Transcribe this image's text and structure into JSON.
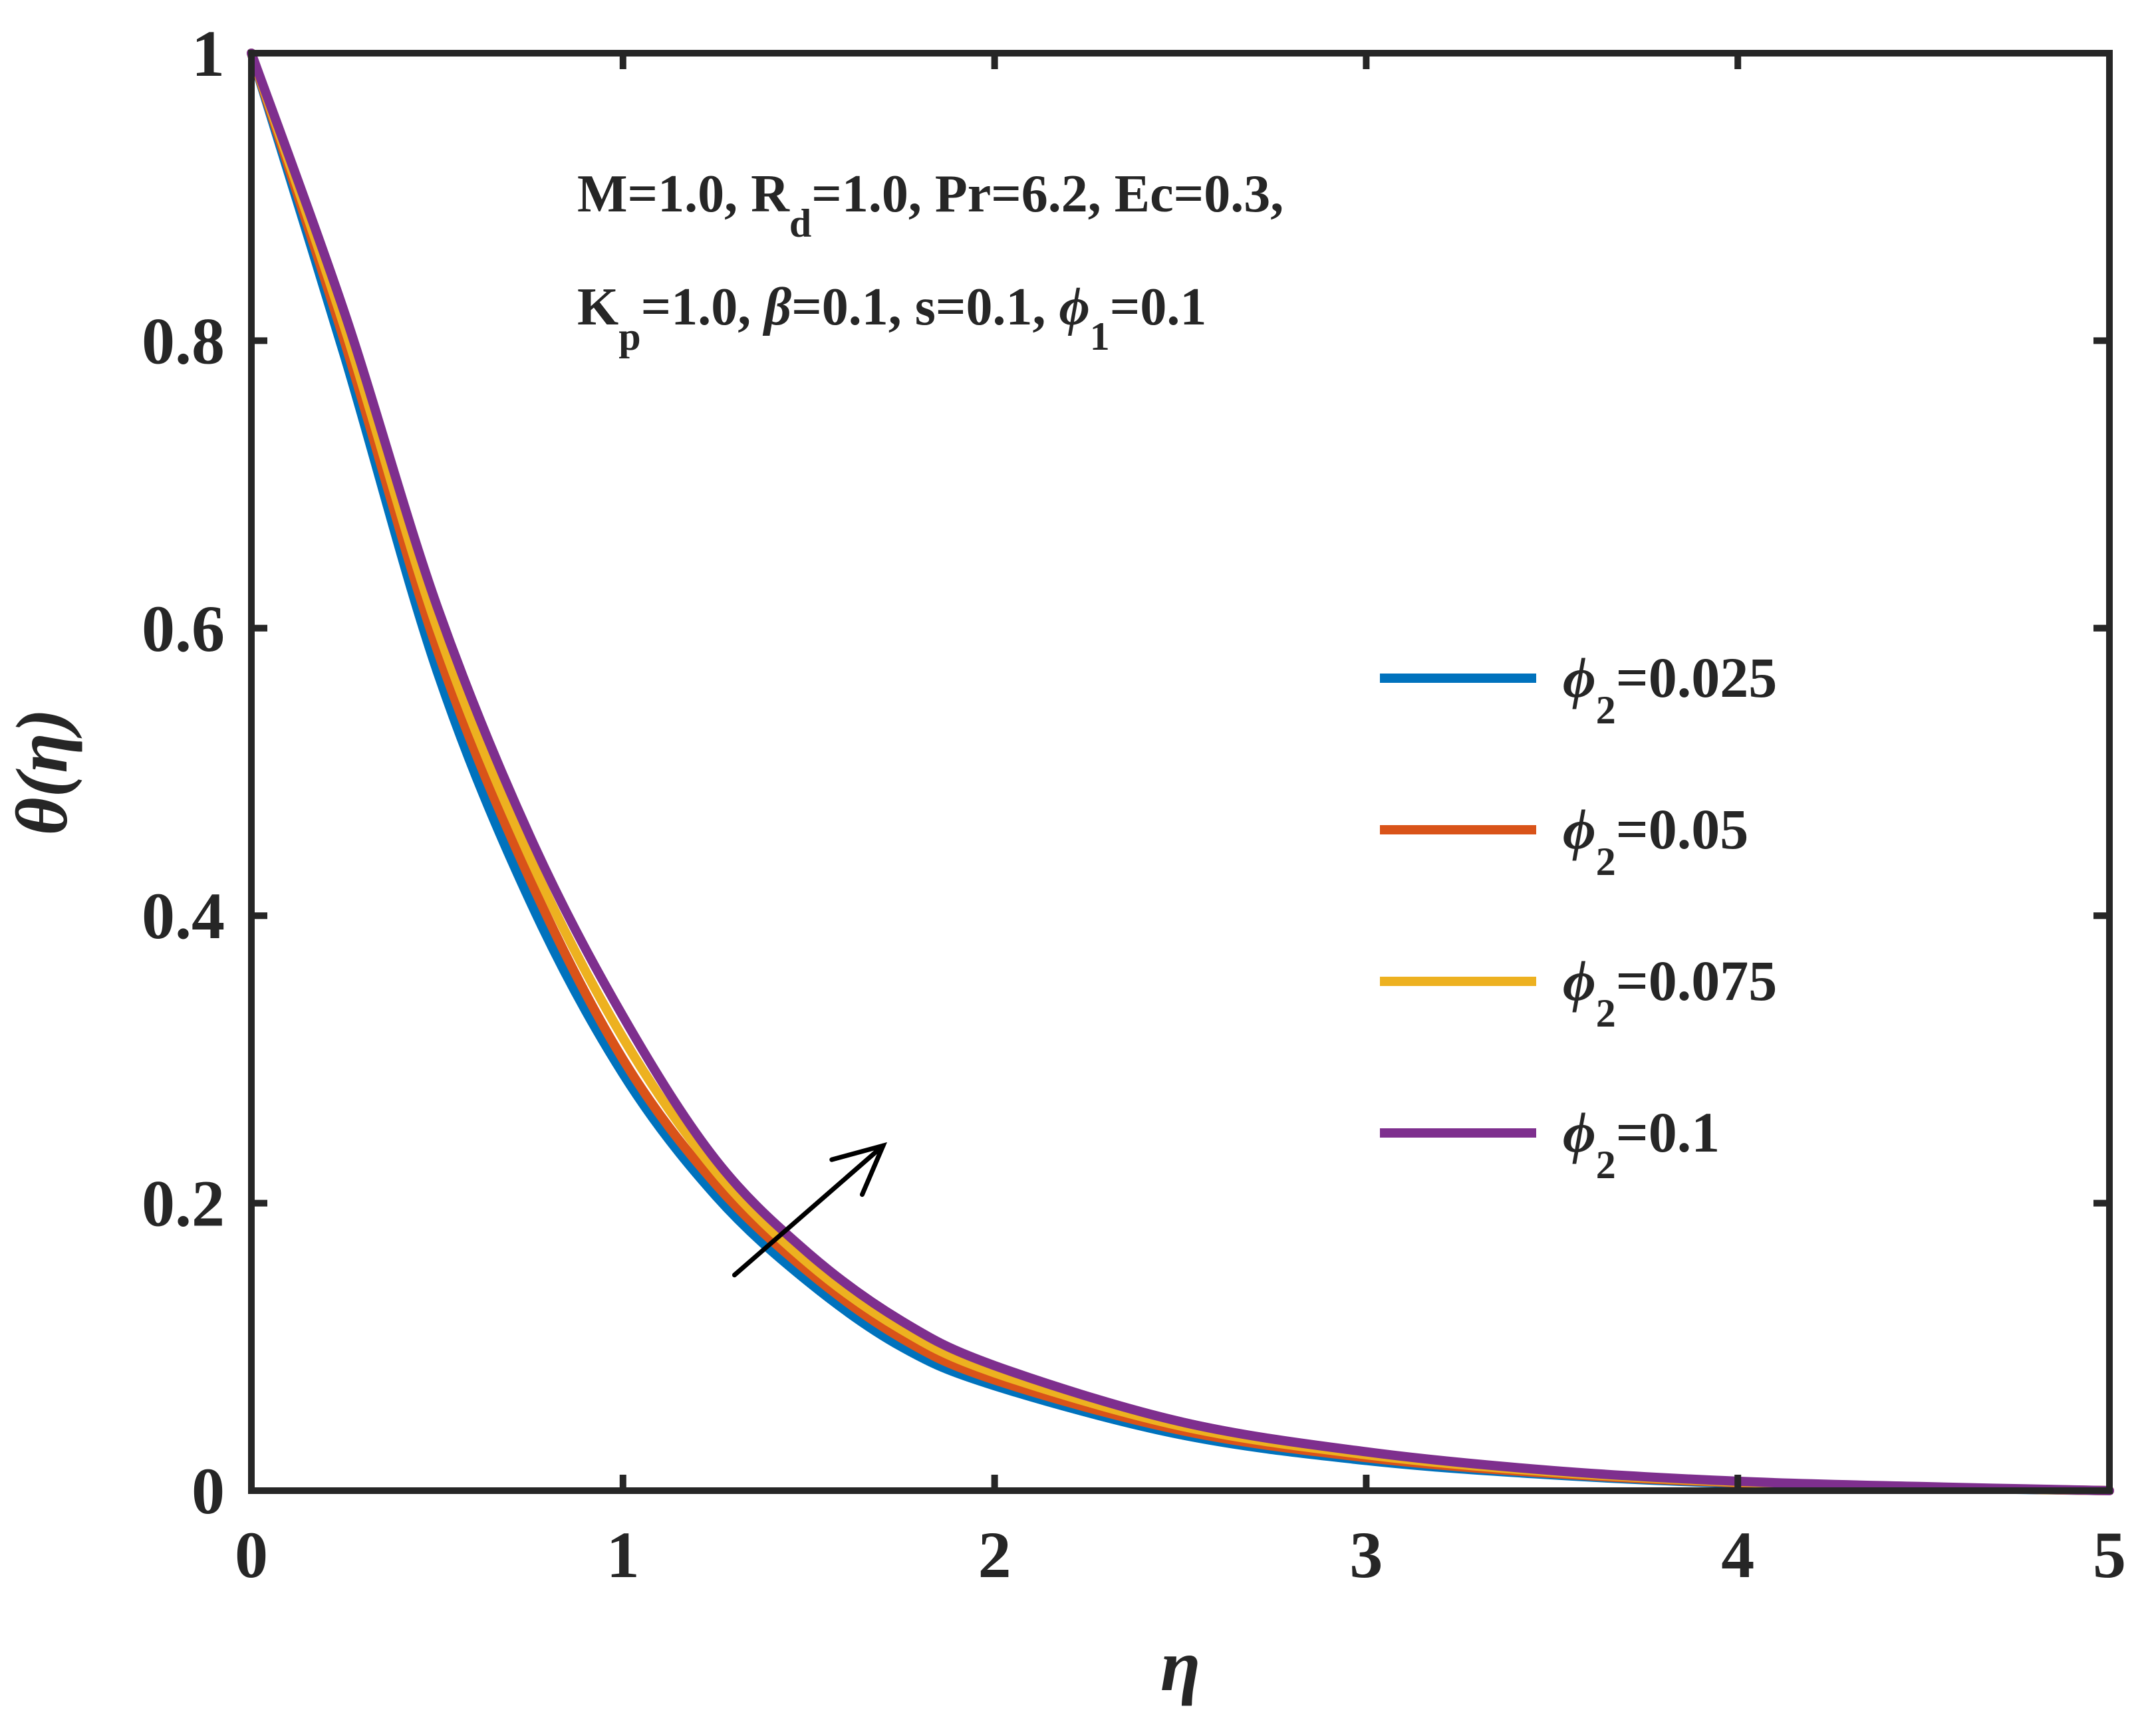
{
  "chart_data": {
    "type": "line",
    "xlabel": "η",
    "ylabel": "θ(η)",
    "xlim": [
      0,
      5
    ],
    "ylim": [
      0,
      1
    ],
    "xticks": [
      "0",
      "1",
      "2",
      "3",
      "4",
      "5"
    ],
    "yticks": [
      "0",
      "0.2",
      "0.4",
      "0.6",
      "0.8",
      "1"
    ],
    "grid": false,
    "legend_position": "right",
    "annotation": {
      "line1": {
        "p1": "M=1.0, R",
        "sub1": "d",
        "p2": "=1.0, Pr=6.2, Ec=0.3,"
      },
      "line2": {
        "p1": "K",
        "sub1": "p",
        "p2": "=1.0, ",
        "beta": "β",
        "p3": "=0.1, s=0.1, ",
        "phi": "ϕ",
        "sub2": "1",
        "p4": "=0.1"
      }
    },
    "arrow": {
      "from": [
        1.3,
        0.15
      ],
      "to": [
        1.7,
        0.24
      ],
      "meaning": "increasing"
    },
    "x": [
      0,
      0.25,
      0.5,
      0.75,
      1.0,
      1.25,
      1.5,
      1.75,
      2.0,
      2.5,
      3.0,
      3.5,
      4.0,
      4.5,
      5.0
    ],
    "series": [
      {
        "name": "=0.025",
        "symbol": "ϕ",
        "sub": "2",
        "color": "#0072BD",
        "values": [
          1.0,
          0.79,
          0.57,
          0.41,
          0.29,
          0.205,
          0.145,
          0.1,
          0.073,
          0.039,
          0.021,
          0.011,
          0.005,
          0.002,
          0.0
        ]
      },
      {
        "name": "=0.05",
        "symbol": "ϕ",
        "sub": "2",
        "color": "#D95319",
        "values": [
          1.0,
          0.8,
          0.585,
          0.425,
          0.3,
          0.213,
          0.152,
          0.106,
          0.077,
          0.042,
          0.023,
          0.012,
          0.0055,
          0.0022,
          0.0
        ]
      },
      {
        "name": "=0.075",
        "symbol": "ϕ",
        "sub": "2",
        "color": "#EDB120",
        "values": [
          1.0,
          0.81,
          0.6,
          0.44,
          0.315,
          0.222,
          0.158,
          0.112,
          0.082,
          0.045,
          0.025,
          0.013,
          0.006,
          0.0025,
          0.0
        ]
      },
      {
        "name": "=0.1",
        "symbol": "ϕ",
        "sub": "2",
        "color": "#7E2F8E",
        "values": [
          1.0,
          0.82,
          0.615,
          0.455,
          0.33,
          0.23,
          0.165,
          0.118,
          0.087,
          0.048,
          0.027,
          0.014,
          0.0065,
          0.0028,
          0.0
        ]
      }
    ]
  }
}
